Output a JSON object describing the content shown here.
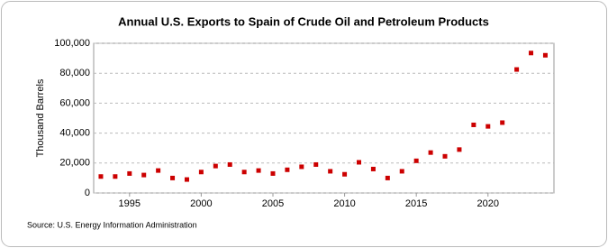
{
  "chart_data": {
    "type": "scatter",
    "title": "Annual U.S. Exports to Spain of Crude Oil and Petroleum Products",
    "y_label": "Thousand Barrels",
    "source": "Source: U.S. Energy Information Administration",
    "x": [
      1993,
      1994,
      1995,
      1996,
      1997,
      1998,
      1999,
      2000,
      2001,
      2002,
      2003,
      2004,
      2005,
      2006,
      2007,
      2008,
      2009,
      2010,
      2011,
      2012,
      2013,
      2014,
      2015,
      2016,
      2017,
      2018,
      2019,
      2020,
      2021,
      2022,
      2023,
      2024
    ],
    "values": [
      11,
      11,
      13,
      12,
      15,
      10,
      9,
      14,
      18,
      19,
      14,
      15,
      13,
      15.5,
      17.5,
      19,
      14.5,
      12.5,
      20.5,
      16,
      10,
      14.5,
      21.5,
      27,
      24.5,
      29,
      45.5,
      44.5,
      47,
      82.5,
      93.5,
      92
    ],
    "color": "#cc0000",
    "xlim": [
      1992.5,
      2024.6
    ],
    "xticks": [
      1995,
      2000,
      2005,
      2010,
      2015,
      2020
    ],
    "ylim": [
      0,
      100
    ],
    "yticks": [
      0,
      {
        "value": 20,
        "label": "20,000"
      },
      {
        "value": 40,
        "label": "40,000"
      },
      {
        "value": 60,
        "label": "60,000"
      },
      {
        "value": 80,
        "label": "80,000"
      },
      {
        "value": 100,
        "label": "100,000"
      }
    ],
    "grid": true
  }
}
